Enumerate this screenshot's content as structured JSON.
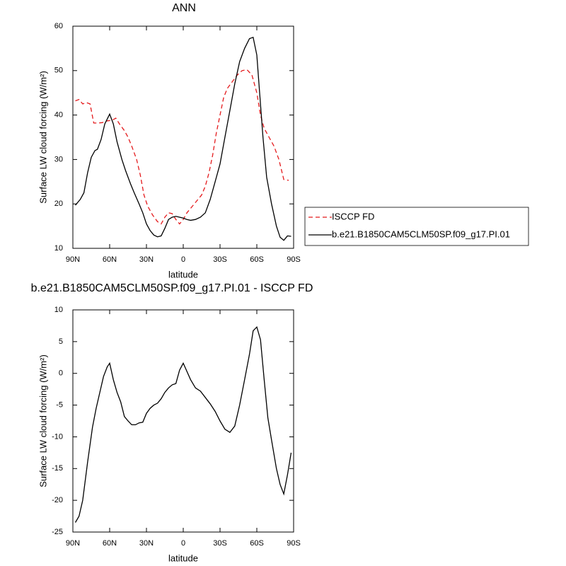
{
  "chart_data": [
    {
      "type": "line",
      "title": "ANN",
      "xlabel": "latitude",
      "ylabel": "Surface LW cloud forcing (W/m²)",
      "xlim": [
        90,
        -90
      ],
      "xticks": [
        {
          "value": 90,
          "label": "90N"
        },
        {
          "value": 60,
          "label": "60N"
        },
        {
          "value": 30,
          "label": "30N"
        },
        0,
        {
          "value": -30,
          "label": "30S"
        },
        {
          "value": -60,
          "label": "60S"
        },
        {
          "value": -90,
          "label": "90S"
        }
      ],
      "ylim": [
        10,
        60
      ],
      "yticks": [
        10,
        20,
        30,
        40,
        50,
        60
      ],
      "legend": "right",
      "series": [
        {
          "name": "ISCCP FD",
          "color": "#e41a1c",
          "line_style": "dashed",
          "x": [
            88,
            85,
            82,
            79,
            76,
            73,
            70,
            66,
            62,
            58,
            55,
            52,
            48,
            45,
            42,
            38,
            35,
            32,
            29,
            25,
            21,
            18,
            15,
            12,
            9,
            6,
            3,
            0,
            -3,
            -6,
            -9,
            -12,
            -15,
            -18,
            -21,
            -24,
            -27,
            -30,
            -33,
            -36,
            -40,
            -44,
            -48,
            -52,
            -56,
            -60,
            -63,
            -66,
            -70,
            -74,
            -78,
            -82,
            -86
          ],
          "values": [
            43.2,
            43.5,
            42.5,
            42.8,
            42.5,
            38.2,
            38.2,
            38.3,
            38.7,
            38.8,
            39.3,
            38,
            36.5,
            35,
            33,
            30,
            26.5,
            22,
            19.5,
            17.5,
            16,
            15.5,
            17,
            18,
            17.8,
            16.5,
            15.5,
            16.5,
            18,
            19,
            20,
            21,
            22,
            24,
            27,
            31,
            36,
            40,
            44,
            46,
            47.5,
            49,
            50,
            50.2,
            49,
            45,
            40,
            37,
            35,
            33,
            30,
            25.5,
            25.3
          ]
        },
        {
          "name": "b.e21.B1850CAM5CLM50SP.f09_g17.PI.01",
          "color": "#000000",
          "line_style": "solid",
          "x": [
            88,
            84,
            81,
            78,
            75,
            72,
            70,
            67,
            64,
            60,
            57,
            54,
            50,
            47,
            43,
            40,
            36,
            33,
            30,
            27,
            24,
            21,
            18,
            15,
            12,
            9,
            6,
            3,
            0,
            -3,
            -6,
            -10,
            -14,
            -18,
            -22,
            -26,
            -30,
            -34,
            -38,
            -42,
            -46,
            -50,
            -54,
            -57,
            -60,
            -62,
            -65,
            -68,
            -72,
            -76,
            -79,
            -82,
            -85,
            -88
          ],
          "values": [
            19.7,
            21,
            22.5,
            27,
            30.5,
            32,
            32.3,
            34.5,
            38,
            40.2,
            38,
            34,
            30,
            27.5,
            24.5,
            22.5,
            20,
            18,
            15.5,
            14,
            13,
            12.6,
            12.8,
            14.5,
            16.5,
            17,
            17.2,
            17,
            16.8,
            16.5,
            16.3,
            16.5,
            17,
            18,
            21,
            25,
            29,
            35,
            41,
            47,
            52,
            55,
            57.2,
            57.5,
            53.5,
            46,
            35,
            26,
            20,
            15,
            12.5,
            11.8,
            12.8,
            12.7
          ]
        }
      ]
    },
    {
      "type": "line",
      "title": "b.e21.B1850CAM5CLM50SP.f09_g17.PI.01 - ISCCP FD",
      "xlabel": "latitude",
      "ylabel": "Surface LW cloud forcing (W/m²)",
      "xlim": [
        90,
        -90
      ],
      "xticks": [
        {
          "value": 90,
          "label": "90N"
        },
        {
          "value": 60,
          "label": "60N"
        },
        {
          "value": 30,
          "label": "30N"
        },
        0,
        {
          "value": -30,
          "label": "30S"
        },
        {
          "value": -60,
          "label": "60S"
        },
        {
          "value": -90,
          "label": "90S"
        }
      ],
      "ylim": [
        -25,
        10
      ],
      "yticks": [
        -25,
        -20,
        -15,
        -10,
        -5,
        0,
        5,
        10
      ],
      "series": [
        {
          "color": "#000000",
          "line_style": "solid",
          "x": [
            88,
            85,
            82,
            78,
            74,
            71,
            68,
            65,
            62,
            60,
            57,
            54,
            51,
            48,
            45,
            42,
            39,
            36,
            33,
            30,
            27,
            24,
            21,
            18,
            15,
            12,
            9,
            6,
            3,
            0,
            -3,
            -6,
            -10,
            -14,
            -18,
            -22,
            -26,
            -30,
            -34,
            -38,
            -42,
            -46,
            -50,
            -54,
            -57,
            -60,
            -63,
            -66,
            -69,
            -72,
            -76,
            -79,
            -82,
            -85,
            -88
          ],
          "values": [
            -23.5,
            -22.5,
            -20,
            -14,
            -8.5,
            -5.5,
            -3,
            -0.5,
            1,
            1.6,
            -1,
            -3,
            -4.5,
            -6.8,
            -7.5,
            -8.1,
            -8.1,
            -7.8,
            -7.7,
            -6.3,
            -5.5,
            -5,
            -4.7,
            -4,
            -3,
            -2.3,
            -1.8,
            -1.6,
            0.5,
            1.6,
            0.3,
            -1,
            -2.3,
            -2.8,
            -3.8,
            -4.8,
            -6,
            -7.5,
            -8.8,
            -9.3,
            -8.3,
            -5,
            -1,
            3,
            6.7,
            7.3,
            5.3,
            -1,
            -7,
            -10.5,
            -15,
            -17.5,
            -19,
            -16,
            -12.5
          ]
        }
      ]
    }
  ]
}
